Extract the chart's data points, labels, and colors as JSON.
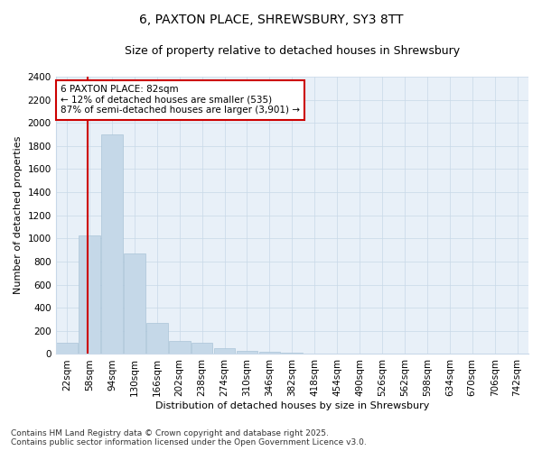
{
  "title": "6, PAXTON PLACE, SHREWSBURY, SY3 8TT",
  "subtitle": "Size of property relative to detached houses in Shrewsbury",
  "xlabel": "Distribution of detached houses by size in Shrewsbury",
  "ylabel": "Number of detached properties",
  "categories": [
    "22sqm",
    "58sqm",
    "94sqm",
    "130sqm",
    "166sqm",
    "202sqm",
    "238sqm",
    "274sqm",
    "310sqm",
    "346sqm",
    "382sqm",
    "418sqm",
    "454sqm",
    "490sqm",
    "526sqm",
    "562sqm",
    "598sqm",
    "634sqm",
    "670sqm",
    "706sqm",
    "742sqm"
  ],
  "values": [
    100,
    1025,
    1900,
    870,
    270,
    115,
    100,
    50,
    30,
    20,
    8,
    4,
    2,
    2,
    1,
    1,
    0,
    0,
    0,
    0,
    0
  ],
  "bar_color": "#c5d8e8",
  "bar_edge_color": "#aac4d8",
  "vline_color": "#cc0000",
  "vline_pos": 0.925,
  "ylim": [
    0,
    2400
  ],
  "yticks": [
    0,
    200,
    400,
    600,
    800,
    1000,
    1200,
    1400,
    1600,
    1800,
    2000,
    2200,
    2400
  ],
  "annotation_text": "6 PAXTON PLACE: 82sqm\n← 12% of detached houses are smaller (535)\n87% of semi-detached houses are larger (3,901) →",
  "annotation_box_color": "#ffffff",
  "annotation_box_edge": "#cc0000",
  "footer_text": "Contains HM Land Registry data © Crown copyright and database right 2025.\nContains public sector information licensed under the Open Government Licence v3.0.",
  "bg_color": "#ffffff",
  "plot_bg_color": "#e8f0f8",
  "grid_color": "#c8d8e8",
  "title_fontsize": 10,
  "subtitle_fontsize": 9,
  "axis_label_fontsize": 8,
  "tick_fontsize": 7.5,
  "annotation_fontsize": 7.5,
  "footer_fontsize": 6.5
}
